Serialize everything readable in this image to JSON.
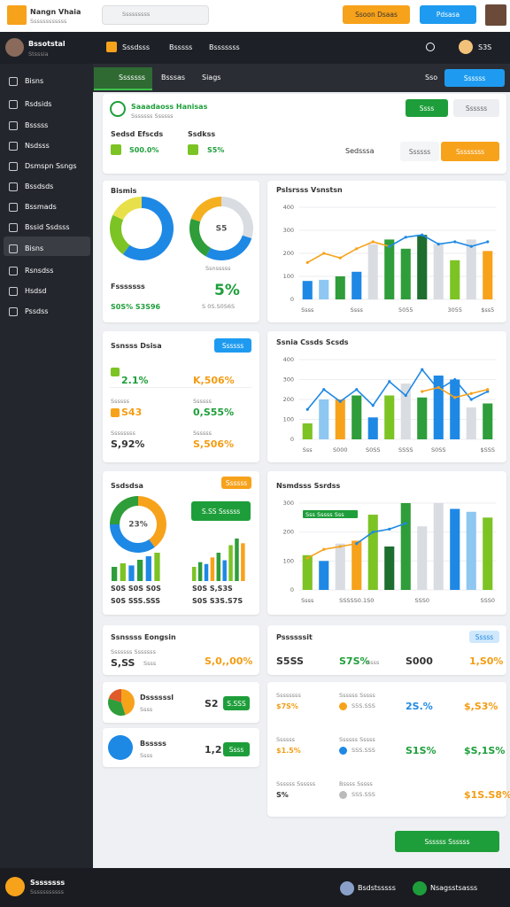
{
  "header": {
    "brand": "Nangn Vhaia",
    "brand_sub": "Ssssssssssss",
    "search": "Sssssssss",
    "button_orange": "Ssoon Dsaas",
    "button_blue": "Pdsasa"
  },
  "sidebar": {
    "user": "Bssotstal",
    "user_sub": "Stsssia",
    "items": [
      "Bisns",
      "Rsdsids",
      "Bsssss",
      "Nsdsss",
      "Dsmspn Ssngs",
      "Bssdsds",
      "Bssmads",
      "Bssid Ssdsss",
      "Bisns",
      "Rsnsdss",
      "Hsdsd",
      "Pssdss"
    ],
    "footer_name": "Ssssssss",
    "footer_sub": "Sssssssssss"
  },
  "nav": {
    "tabs": [
      "Sssdsss",
      "Bsssss",
      "Bsssssss"
    ],
    "user": "S3S"
  },
  "subnav": {
    "tabs": [
      "Sssssss",
      "Bsssas",
      "Siags"
    ],
    "label": "Sso",
    "button": "Ssssss"
  },
  "top_card": {
    "title": "Saaadaoss Hanisas",
    "subtitle": "Sssssss Ssssss",
    "kpis": [
      {
        "label": "Sedsd Efscds",
        "value": "S00.0%"
      },
      {
        "label": "Ssdkss",
        "value": "S5%"
      }
    ],
    "badge": "Ssss",
    "button_grey": "Ssssss",
    "select": "Sedsssa",
    "button_light": "Ssssss",
    "button_orange": "Ssssssss"
  },
  "donut_card": {
    "caption": "Ssnsssss",
    "footer_label": "Fsssssss",
    "footer_value": "S0S% S3S96",
    "big": "5%",
    "big_sub": "S 0S.S0S6S"
  },
  "stats_card": {
    "title": "Ssnsss Dsisa",
    "badge": "Ssssss",
    "cells": [
      {
        "label": "",
        "value": "2.1%"
      },
      {
        "label": "",
        "value": "K,506%"
      },
      {
        "label": "Ssssss",
        "value": "S43"
      },
      {
        "label": "Ssssss",
        "value": "0,S55%"
      },
      {
        "label": "Ssssssss",
        "value": "S,92%"
      },
      {
        "label": "Ssssss",
        "value": "S,506%"
      }
    ]
  },
  "mix_card": {
    "title": "Ssdsdsa",
    "badge": "Ssssss",
    "button": "S.SS Ssssss",
    "notes": [
      "S0S S0S S0S",
      "S0S SSS.SSS",
      "S0S S,S3S",
      "S0S S3S.S7S"
    ]
  },
  "engage_card": {
    "title": "Ssnssss Eongsin",
    "subtitle": "Sssssss Sssssss",
    "value": "S,SS",
    "unit": "Ssss",
    "right": "S,0,,00%"
  },
  "profit_card": {
    "title": "Pssssssit",
    "badge": "Sssss",
    "values": [
      "S5SS",
      "S7S%",
      "Ssss",
      "S000",
      "1,S0%"
    ]
  },
  "small_cards": [
    {
      "title": "Dssssssl",
      "sub": "Ssss",
      "value": "S2",
      "button": "S.SSS"
    },
    {
      "title": "Bsssss",
      "sub": "Ssss",
      "value": "1,2",
      "button": "Ssss"
    }
  ],
  "table_card": {
    "rows": [
      [
        "Ssssssss",
        "$7S%",
        "Ssssss Sssss",
        "S5S.SSS",
        "2S.%",
        "$,S3%"
      ],
      [
        "Ssssss",
        "$1.5%",
        "Ssssss Sssss",
        "SSS.SSS",
        "S1S%",
        "$S,1S%"
      ],
      [
        "Ssssss Ssssss",
        "S%",
        "Bssss Sssss",
        "SSS.SSS",
        "",
        "$1S.S8%"
      ]
    ],
    "button": "Ssssss Ssssss"
  },
  "footer": {
    "left": "Bsdstsssss",
    "right": "Nsagsstsasss"
  },
  "chart_data": [
    {
      "type": "donut",
      "title": "Bismis",
      "values": [
        60,
        22,
        18
      ],
      "colors": [
        "#1e88e5",
        "#7cc324",
        "#e8e04a"
      ]
    },
    {
      "type": "donut",
      "center_label": "S5",
      "values": [
        30,
        28,
        22,
        20
      ],
      "colors": [
        "#d9dde2",
        "#1e88e5",
        "#2e9d3a",
        "#f5b020"
      ]
    },
    {
      "type": "combo",
      "title": "Pslsrsss Vsnstsn",
      "categories": [
        "Ssss",
        null,
        null,
        "Ssss",
        null,
        null,
        "5055",
        null,
        null,
        "3055",
        null,
        "$ss5"
      ],
      "ylim": [
        0,
        400
      ],
      "yticks": [
        0,
        100,
        200,
        300,
        400
      ],
      "grid": true,
      "series": [
        {
          "type": "bar",
          "colors": [
            "#1e88e5",
            "#8ec7f2",
            "#2e9d3a",
            "#1e88e5",
            "#d9dde2",
            "#2e9d3a",
            "#2e9d3a",
            "#1e6e2f",
            "#d9dde2",
            "#7cc324",
            "#d9dde2",
            "#f7a21b"
          ],
          "values": [
            80,
            85,
            100,
            120,
            240,
            260,
            220,
            280,
            240,
            170,
            260,
            210
          ]
        },
        {
          "type": "line",
          "color": "#f7a21b",
          "values": [
            160,
            200,
            180,
            220,
            250,
            230,
            null,
            null,
            null,
            null,
            null,
            null
          ]
        },
        {
          "type": "line",
          "color": "#1e88e5",
          "values": [
            null,
            null,
            null,
            null,
            null,
            230,
            270,
            280,
            240,
            250,
            230,
            250
          ]
        }
      ]
    },
    {
      "type": "combo",
      "title": "Ssnia Cssds Scsds",
      "categories": [
        "Sss",
        null,
        "S000",
        null,
        "S0SS",
        null,
        "SSSS",
        null,
        "S0SS",
        null,
        null,
        "$SSS"
      ],
      "ylim": [
        0,
        400
      ],
      "yticks": [
        0,
        100,
        200,
        300,
        400
      ],
      "grid": true,
      "series": [
        {
          "type": "bar",
          "colors": [
            "#7cc324",
            "#8ec7f2",
            "#f7a21b",
            "#2e9d3a",
            "#1e88e5",
            "#7cc324",
            "#d9dde2",
            "#2e9d3a",
            "#1e88e5",
            "#1e88e5",
            "#d9dde2",
            "#2e9d3a"
          ],
          "values": [
            80,
            200,
            200,
            220,
            110,
            220,
            280,
            210,
            320,
            300,
            160,
            180
          ]
        },
        {
          "type": "line",
          "color": "#1e88e5",
          "values": [
            150,
            250,
            190,
            250,
            170,
            290,
            220,
            350,
            250,
            300,
            200,
            240
          ]
        },
        {
          "type": "line",
          "color": "#f7a21b",
          "values": [
            null,
            null,
            null,
            null,
            null,
            null,
            null,
            240,
            260,
            210,
            230,
            250
          ]
        }
      ]
    },
    {
      "type": "donut",
      "center_label": "23%",
      "values": [
        40,
        35,
        25
      ],
      "colors": [
        "#f7a21b",
        "#1e88e5",
        "#2e9d3a"
      ]
    },
    {
      "type": "combo",
      "title": "Nsmdsss Ssrdss",
      "annotation": "Sss Sssss Sss",
      "categories": [
        "Ssss",
        null,
        null,
        "SSSSS0.1S0",
        null,
        null,
        null,
        "SSS0",
        null,
        null,
        null,
        "SSS0"
      ],
      "ylim": [
        0,
        300
      ],
      "yticks": [
        0,
        100,
        200,
        300
      ],
      "grid": true,
      "series": [
        {
          "type": "bar",
          "colors": [
            "#7cc324",
            "#1e88e5",
            "#d9dde2",
            "#f7a21b",
            "#7cc324",
            "#1e6e2f",
            "#2e9d3a",
            "#d9dde2",
            "#d9dde2",
            "#1e88e5",
            "#8ec7f2",
            "#7cc324"
          ],
          "values": [
            120,
            100,
            160,
            170,
            260,
            150,
            300,
            220,
            300,
            280,
            270,
            250
          ]
        },
        {
          "type": "line",
          "color": "#f7a21b",
          "values": [
            110,
            140,
            150,
            160,
            null,
            null,
            null,
            null,
            null,
            null,
            null,
            null
          ]
        },
        {
          "type": "line",
          "color": "#1e88e5",
          "values": [
            null,
            null,
            null,
            160,
            200,
            210,
            230,
            null,
            null,
            null,
            null,
            null
          ]
        }
      ]
    },
    {
      "type": "bar",
      "values": [
        20,
        25,
        22,
        30,
        35,
        40
      ],
      "colors": [
        "#2e9d3a",
        "#7cc324",
        "#1e88e5",
        "#2e9d3a",
        "#1e88e5",
        "#7cc324"
      ]
    },
    {
      "type": "bar",
      "values": [
        15,
        20,
        18,
        25,
        30,
        22,
        38,
        45,
        40
      ],
      "colors": [
        "#7cc324",
        "#2e9d3a",
        "#1e88e5",
        "#f7a21b",
        "#2e9d3a",
        "#1e88e5",
        "#7cc324",
        "#2e9d3a",
        "#f7a21b"
      ]
    },
    {
      "type": "donut",
      "values": [
        45,
        35,
        20
      ],
      "colors": [
        "#f7a21b",
        "#2e9d3a",
        "#e05a2a"
      ]
    }
  ]
}
